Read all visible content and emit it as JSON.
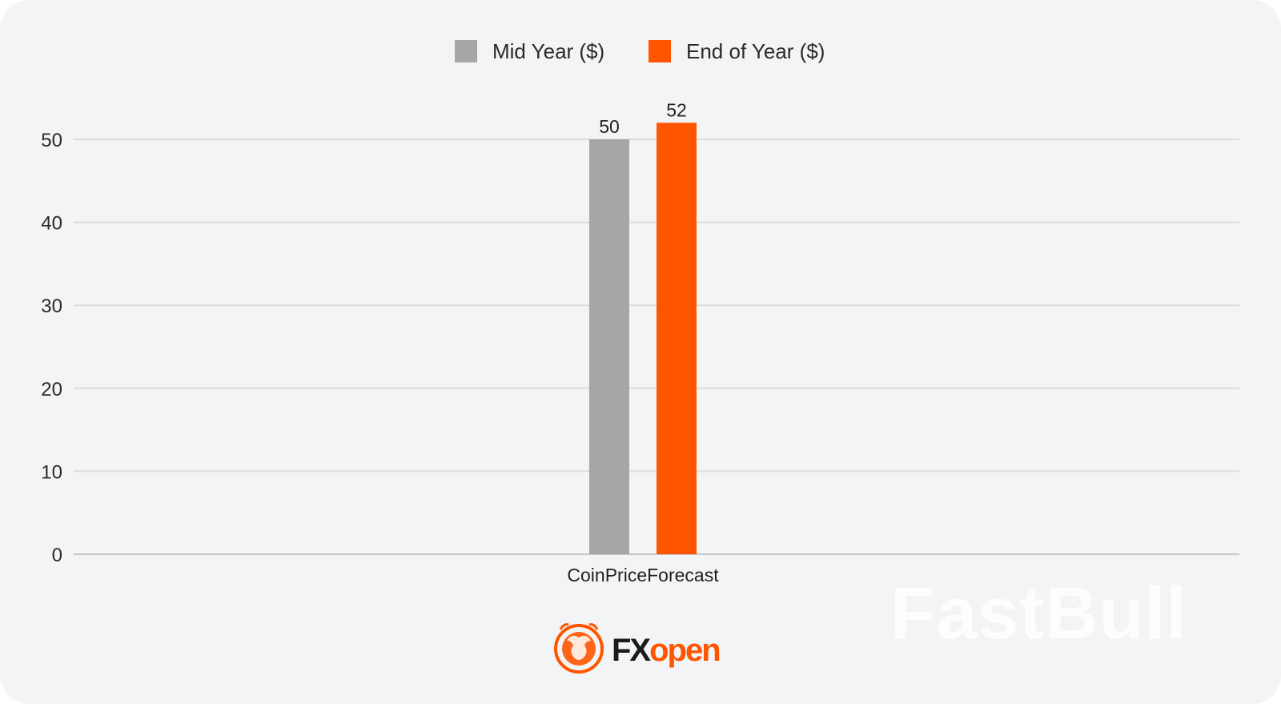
{
  "chart_data": {
    "type": "bar",
    "categories": [
      "CoinPriceForecast"
    ],
    "series": [
      {
        "name": "Mid Year ($)",
        "values": [
          50
        ],
        "color": "#a6a6a6"
      },
      {
        "name": "End of Year ($)",
        "values": [
          52
        ],
        "color": "#ff5500"
      }
    ],
    "yticks": [
      0,
      10,
      20,
      30,
      40,
      50
    ],
    "ylim": [
      0,
      52
    ],
    "grid": true,
    "legend_position": "top-center"
  },
  "branding": {
    "logo_fx": "FX",
    "logo_open": "open",
    "watermark": "FastBull",
    "accent_color": "#ff5500"
  }
}
